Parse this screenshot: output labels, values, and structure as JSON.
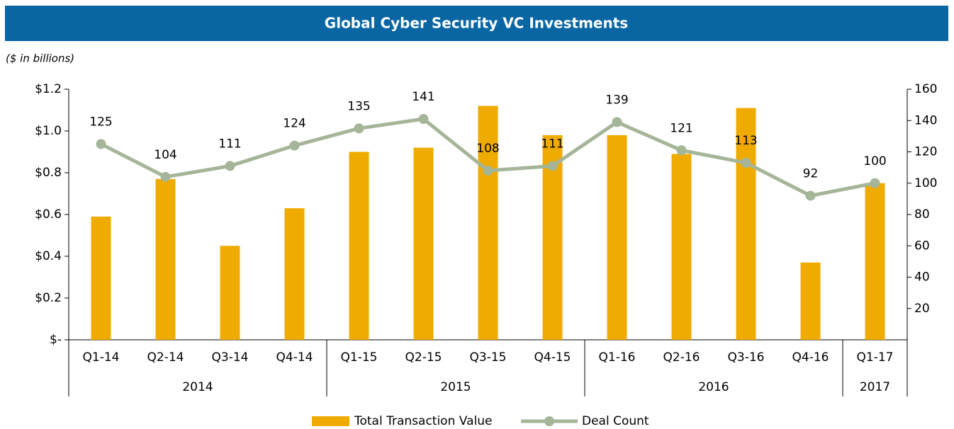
{
  "chart_data": {
    "type": "bar-line",
    "title": "Global Cyber Security VC Investments",
    "subtitle": "($ in billions)",
    "categories": [
      "Q1-14",
      "Q2-14",
      "Q3-14",
      "Q4-14",
      "Q1-15",
      "Q2-15",
      "Q3-15",
      "Q4-15",
      "Q1-16",
      "Q2-16",
      "Q3-16",
      "Q4-16",
      "Q1-17"
    ],
    "groups": [
      {
        "label": "2014",
        "span": 4
      },
      {
        "label": "2015",
        "span": 4
      },
      {
        "label": "2016",
        "span": 4
      },
      {
        "label": "2017",
        "span": 1
      }
    ],
    "series": [
      {
        "name": "Total Transaction Value",
        "type": "bar",
        "color": "#f0ab00",
        "values": [
          0.59,
          0.77,
          0.45,
          0.63,
          0.9,
          0.92,
          1.12,
          0.98,
          0.98,
          0.89,
          1.11,
          0.37,
          0.75
        ]
      },
      {
        "name": "Deal Count",
        "type": "line",
        "axis": "y2",
        "color": "#a4b598",
        "values": [
          125,
          104,
          111,
          124,
          135,
          141,
          108,
          111,
          139,
          121,
          113,
          92,
          100
        ]
      }
    ],
    "ylim": [
      0,
      1.2
    ],
    "yticks": [
      {
        "value": 0,
        "label": "$-"
      },
      {
        "value": 0.2,
        "label": "$0.2"
      },
      {
        "value": 0.4,
        "label": "$0.4"
      },
      {
        "value": 0.6,
        "label": "$0.6"
      },
      {
        "value": 0.8,
        "label": "$0.8"
      },
      {
        "value": 1,
        "label": "$1.0"
      },
      {
        "value": 1.2,
        "label": "$1.2"
      }
    ],
    "y2lim": [
      0,
      160
    ],
    "y2ticks": [
      20,
      40,
      60,
      80,
      100,
      120,
      140,
      160
    ],
    "legend": "bottom"
  }
}
